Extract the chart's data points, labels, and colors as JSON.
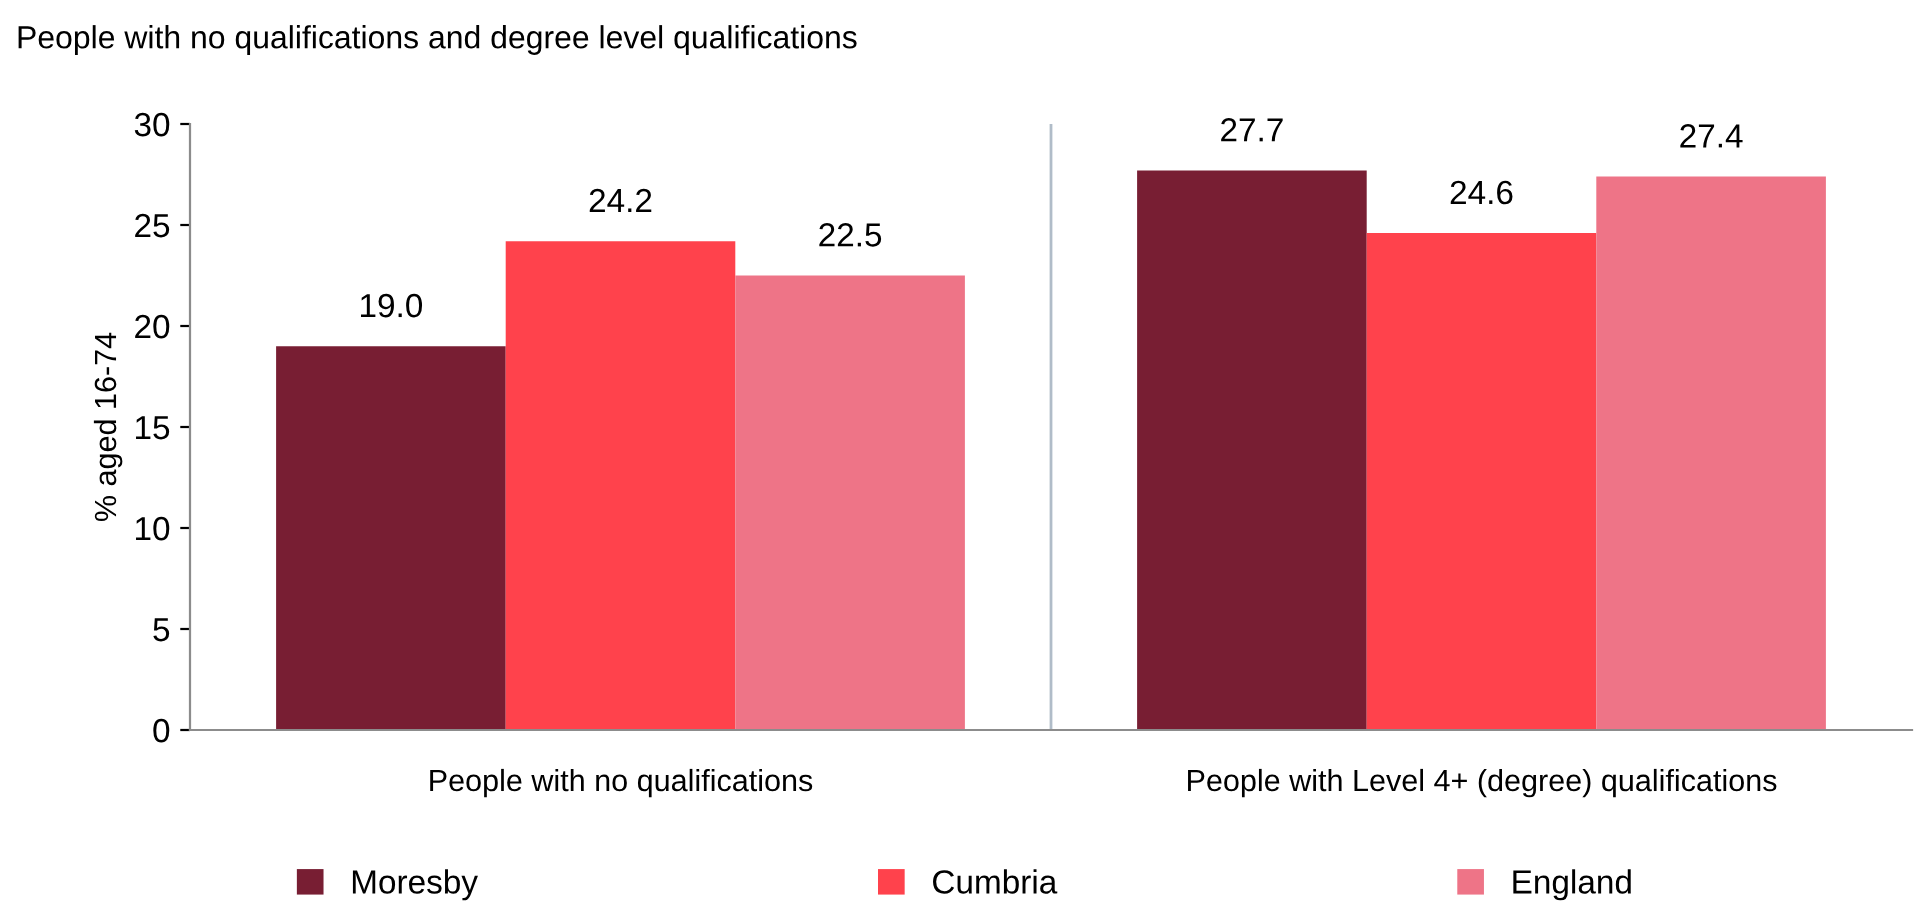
{
  "chart_data": {
    "type": "bar",
    "title": "People with no qualifications and degree level qualifications",
    "ylabel": "% aged 16-74",
    "categories": [
      "People with no qualifications",
      "People with Level 4+ (degree) qualifications"
    ],
    "series": [
      {
        "name": "Moresby",
        "color": "#781e33",
        "values": [
          19.0,
          27.7
        ],
        "value_labels": [
          "19.0",
          "27.7"
        ]
      },
      {
        "name": "Cumbria",
        "color": "#ff424c",
        "values": [
          24.2,
          24.6
        ],
        "value_labels": [
          "24.2",
          "24.6"
        ]
      },
      {
        "name": "England",
        "color": "#ee7487",
        "values": [
          22.5,
          27.4
        ],
        "value_labels": [
          "22.5",
          "27.4"
        ]
      }
    ],
    "ylim": [
      0,
      30
    ],
    "yticks": [
      0,
      5,
      10,
      15,
      20,
      25,
      30
    ],
    "grid": false,
    "legend": "bottom"
  }
}
